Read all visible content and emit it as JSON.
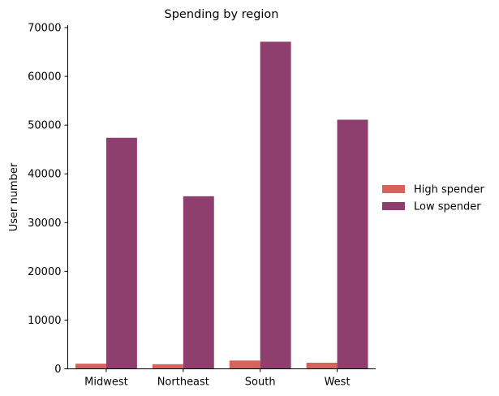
{
  "chart_data": {
    "type": "bar",
    "title": "Spending by region",
    "xlabel": "",
    "ylabel": "User number",
    "categories": [
      "Midwest",
      "Northeast",
      "South",
      "West"
    ],
    "series": [
      {
        "name": "High spender",
        "values": [
          1050,
          950,
          1700,
          1250
        ],
        "color": "#d9625f"
      },
      {
        "name": "Low spender",
        "values": [
          47400,
          35400,
          67100,
          51100
        ],
        "color": "#8e3f6d"
      }
    ],
    "ylim": [
      0,
      70000
    ],
    "yticks": [
      0,
      10000,
      20000,
      30000,
      40000,
      50000,
      60000,
      70000
    ],
    "legend_position": "right",
    "grid": false
  }
}
